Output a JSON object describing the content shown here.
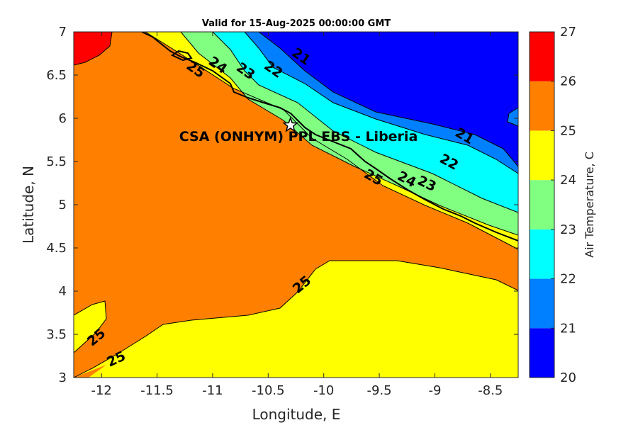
{
  "title": "Valid for 15-Aug-2025 00:00:00 GMT",
  "site_label": "CSA (ONHYM) PPL EBS  - Liberia",
  "colors": {
    "c20": "#0000ff",
    "c21": "#0080ff",
    "c22": "#00ffff",
    "c23": "#80ff80",
    "c24": "#ffff00",
    "c25": "#ff8000",
    "c26": "#ff0000",
    "c27": "#800000"
  },
  "icons": {
    "site_marker": "star-icon"
  },
  "chart_data": {
    "type": "contour",
    "xlabel": "Longitude, E",
    "ylabel": "Latitude, N",
    "xlim": [
      -12.25,
      -8.25
    ],
    "ylim": [
      3,
      7
    ],
    "xticks": [
      "-12",
      "-11.5",
      "-11",
      "-10.5",
      "-10",
      "-9.5",
      "-9",
      "-8.5"
    ],
    "yticks": [
      "3",
      "3.5",
      "4",
      "4.5",
      "5",
      "5.5",
      "6",
      "6.5",
      "7"
    ],
    "site": {
      "lon": -10.3,
      "lat": 5.92
    },
    "contour_labels": [
      {
        "text": "21",
        "lon": -10.2,
        "lat": 6.72
      },
      {
        "text": "22",
        "lon": -10.45,
        "lat": 6.57
      },
      {
        "text": "23",
        "lon": -10.7,
        "lat": 6.55
      },
      {
        "text": "24",
        "lon": -10.95,
        "lat": 6.62
      },
      {
        "text": "25",
        "lon": -11.15,
        "lat": 6.57
      },
      {
        "text": "21",
        "lon": -8.73,
        "lat": 5.8
      },
      {
        "text": "22",
        "lon": -8.87,
        "lat": 5.5
      },
      {
        "text": "24",
        "lon": -9.25,
        "lat": 5.3
      },
      {
        "text": "23",
        "lon": -9.07,
        "lat": 5.25
      },
      {
        "text": "25",
        "lon": -9.55,
        "lat": 5.32
      },
      {
        "text": "25",
        "lon": -10.2,
        "lat": 4.08
      },
      {
        "text": "25",
        "lon": -12.05,
        "lat": 3.47
      },
      {
        "text": "25",
        "lon": -11.87,
        "lat": 3.22
      }
    ],
    "colorbar": {
      "label": "Air Temperature, C",
      "ticks": [
        "20",
        "21",
        "22",
        "23",
        "24",
        "25",
        "26",
        "27"
      ],
      "range": [
        20,
        27
      ]
    }
  }
}
